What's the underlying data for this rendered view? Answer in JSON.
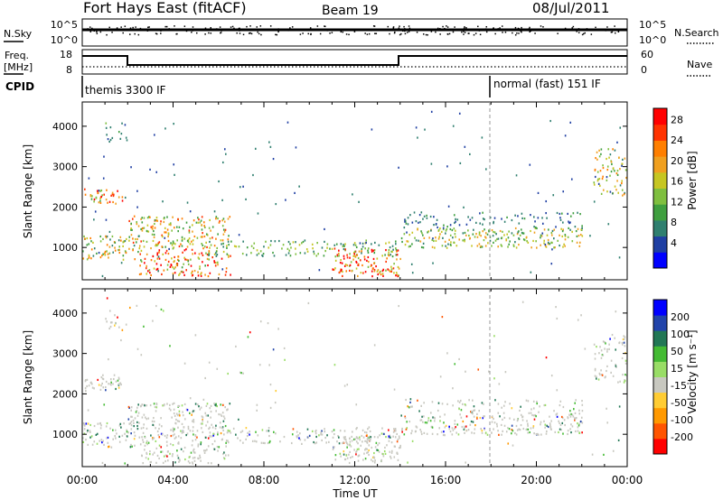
{
  "header": {
    "title": "Fort Hays East (fitACF)",
    "beam": "Beam 19",
    "date": "08/Jul/2011"
  },
  "sky_panel": {
    "left_label": "N.Sky",
    "left_ticks": [
      "10^5",
      "10^0"
    ],
    "right_label": "N.Search",
    "right_ticks": [
      "10^5",
      "10^0"
    ]
  },
  "freq_panel": {
    "left_label_top": "Freq.",
    "left_label_bottom": "[MHz]",
    "left_ticks": [
      "18",
      "8"
    ],
    "right_label": "Nave",
    "right_ticks": [
      "60",
      "0"
    ]
  },
  "cpid_panel": {
    "label": "CPID",
    "segments": [
      {
        "start_hour": 0,
        "text": "themis 3300 IF"
      },
      {
        "start_hour": 18,
        "text": "normal (fast) 151 IF"
      }
    ]
  },
  "chart_data": [
    {
      "type": "heatmap",
      "quantity": "Power",
      "ylabel": "Slant Range [km]",
      "yticks": [
        1000,
        2000,
        3000,
        4000
      ],
      "ylim": [
        200,
        4600
      ],
      "xlim_hours": [
        0,
        24
      ],
      "colorbar_label": "Power [dB]",
      "colorbar_ticks": [
        "4",
        "8",
        "12",
        "16",
        "20",
        "24",
        "28"
      ],
      "colorbar_colors": [
        "#0000ff",
        "#1f3fa3",
        "#2f7f6f",
        "#3f9f3f",
        "#7fbf3f",
        "#c6c622",
        "#f0a020",
        "#ff7f00",
        "#ff3300",
        "#ff0000"
      ]
    },
    {
      "type": "heatmap",
      "quantity": "Velocity",
      "ylabel": "Slant Range [km]",
      "yticks": [
        1000,
        2000,
        3000,
        4000
      ],
      "ylim": [
        200,
        4600
      ],
      "xlim_hours": [
        0,
        24
      ],
      "colorbar_label": "Velocity [m s⁻¹]",
      "colorbar_ticks": [
        "-200",
        "-100",
        "-50",
        "-15",
        "15",
        "50",
        "100",
        "200"
      ],
      "colorbar_colors": [
        "#ff0000",
        "#ff5500",
        "#ff9900",
        "#ffcc33",
        "#c8c8c0",
        "#99dd66",
        "#44bb33",
        "#227755",
        "#2244aa",
        "#0000ff"
      ]
    }
  ],
  "time_axis": {
    "ticks": [
      "00:00",
      "04:00",
      "08:00",
      "12:00",
      "16:00",
      "20:00",
      "00:00"
    ],
    "label": "Time UT"
  }
}
